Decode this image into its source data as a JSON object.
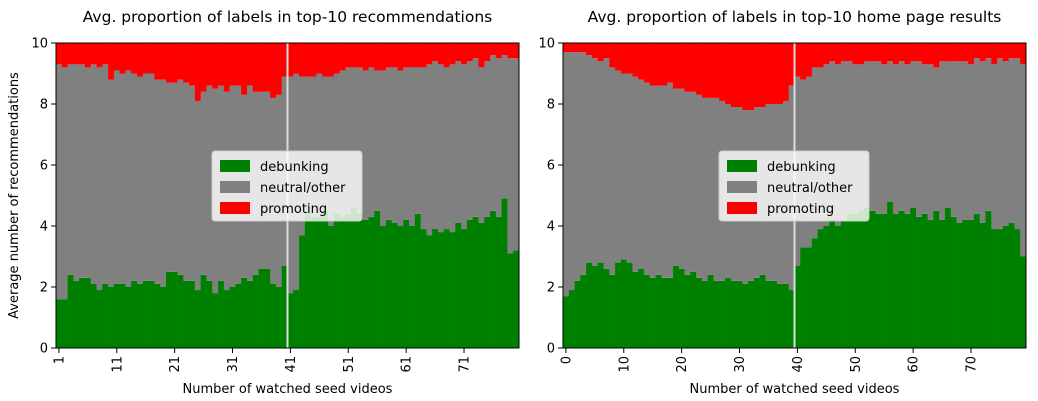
{
  "colors": {
    "debunking": "#008000",
    "neutral": "#808080",
    "promoting": "#ff0000",
    "marker_line": "#dcdcdc"
  },
  "chart_data": [
    {
      "type": "bar",
      "stacked": true,
      "title": "Avg. proportion of labels in top-10 recommendations",
      "xlabel": "Number of watched seed videos",
      "ylabel": "Average number of recommendations",
      "x_start": 1,
      "x_tick_labels": [
        "1",
        "11",
        "21",
        "31",
        "41",
        "51",
        "61",
        "71"
      ],
      "y_tick_labels": [
        "0",
        "2",
        "4",
        "6",
        "8",
        "10"
      ],
      "ylim": [
        0,
        10
      ],
      "grid": false,
      "legend_position": "center",
      "vertical_marker": 41,
      "series": [
        {
          "name": "debunking",
          "values": [
            1.6,
            1.6,
            2.4,
            2.2,
            2.3,
            2.3,
            2.1,
            1.9,
            2.1,
            2.0,
            2.1,
            2.1,
            2.0,
            2.2,
            2.1,
            2.2,
            2.2,
            2.1,
            2.0,
            2.5,
            2.5,
            2.4,
            2.2,
            2.2,
            1.9,
            2.4,
            2.2,
            1.8,
            2.2,
            1.9,
            2.0,
            2.1,
            2.3,
            2.2,
            2.4,
            2.6,
            2.6,
            2.1,
            2.0,
            2.7,
            1.8,
            1.9,
            3.7,
            4.5,
            4.3,
            4.3,
            4.5,
            4.0,
            4.4,
            4.3,
            4.4,
            4.6,
            4.4,
            4.2,
            4.3,
            4.5,
            4.0,
            4.2,
            4.1,
            4.0,
            4.2,
            4.0,
            4.4,
            3.9,
            3.7,
            3.9,
            3.8,
            3.9,
            3.8,
            4.1,
            3.9,
            4.2,
            4.3,
            4.1,
            4.3,
            4.5,
            4.3,
            4.9,
            3.1,
            3.2
          ]
        },
        {
          "name": "neutral/other",
          "values": [
            7.7,
            7.6,
            6.9,
            7.1,
            7.0,
            6.9,
            7.2,
            7.3,
            7.2,
            6.8,
            7.0,
            6.9,
            7.1,
            6.8,
            6.8,
            6.8,
            6.8,
            6.7,
            6.8,
            6.2,
            6.2,
            6.4,
            6.5,
            6.4,
            6.2,
            6.0,
            6.4,
            6.7,
            6.4,
            6.5,
            6.6,
            6.5,
            6.0,
            6.4,
            6.0,
            5.8,
            5.8,
            6.1,
            6.3,
            6.2,
            7.1,
            7.1,
            5.2,
            4.4,
            4.6,
            4.7,
            4.4,
            4.9,
            4.6,
            4.8,
            4.8,
            4.6,
            4.8,
            4.9,
            4.9,
            4.6,
            5.1,
            5.0,
            5.1,
            5.1,
            5.0,
            5.2,
            4.8,
            5.3,
            5.6,
            5.5,
            5.5,
            5.3,
            5.5,
            5.3,
            5.4,
            5.2,
            5.2,
            5.1,
            5.1,
            5.1,
            5.2,
            4.7,
            6.4,
            6.3
          ]
        },
        {
          "name": "promoting",
          "values": [
            0.7,
            0.8,
            0.7,
            0.7,
            0.7,
            0.8,
            0.7,
            0.8,
            0.7,
            1.2,
            0.9,
            1.0,
            0.9,
            1.0,
            1.1,
            1.0,
            1.0,
            1.2,
            1.2,
            1.3,
            1.3,
            1.2,
            1.3,
            1.4,
            1.9,
            1.6,
            1.4,
            1.5,
            1.4,
            1.6,
            1.4,
            1.4,
            1.7,
            1.4,
            1.6,
            1.6,
            1.6,
            1.8,
            1.7,
            1.1,
            1.1,
            1.0,
            1.1,
            1.1,
            1.1,
            1.0,
            1.1,
            1.1,
            1.0,
            0.9,
            0.8,
            0.8,
            0.8,
            0.9,
            0.8,
            0.9,
            0.9,
            0.8,
            0.8,
            0.9,
            0.8,
            0.8,
            0.8,
            0.8,
            0.7,
            0.6,
            0.7,
            0.8,
            0.7,
            0.6,
            0.7,
            0.6,
            0.5,
            0.8,
            0.6,
            0.4,
            0.5,
            0.4,
            0.5,
            0.5
          ]
        }
      ]
    },
    {
      "type": "bar",
      "stacked": true,
      "title": "Avg. proportion of labels in top-10 home page results",
      "xlabel": "Number of watched seed videos",
      "ylabel": "",
      "x_start": 0,
      "x_tick_labels": [
        "0",
        "10",
        "20",
        "30",
        "40",
        "50",
        "60",
        "70"
      ],
      "y_tick_labels": [
        "0",
        "2",
        "4",
        "6",
        "8",
        "10"
      ],
      "ylim": [
        0,
        10
      ],
      "grid": false,
      "legend_position": "center",
      "vertical_marker": 40,
      "series": [
        {
          "name": "debunking",
          "values": [
            1.7,
            1.9,
            2.2,
            2.4,
            2.8,
            2.7,
            2.8,
            2.6,
            2.4,
            2.8,
            2.9,
            2.8,
            2.5,
            2.6,
            2.4,
            2.3,
            2.4,
            2.3,
            2.3,
            2.7,
            2.6,
            2.4,
            2.5,
            2.3,
            2.2,
            2.4,
            2.2,
            2.2,
            2.3,
            2.2,
            2.2,
            2.1,
            2.2,
            2.3,
            2.4,
            2.2,
            2.2,
            2.1,
            2.1,
            1.9,
            2.7,
            3.3,
            3.3,
            3.6,
            3.9,
            4.0,
            4.2,
            4.0,
            4.2,
            4.4,
            4.4,
            4.5,
            4.6,
            4.5,
            4.4,
            4.4,
            4.8,
            4.4,
            4.5,
            4.4,
            4.6,
            4.3,
            4.4,
            4.2,
            4.5,
            4.2,
            4.6,
            4.3,
            4.1,
            4.2,
            4.2,
            4.4,
            4.1,
            4.5,
            3.9,
            3.9,
            4.0,
            4.1,
            3.9,
            3.0
          ]
        },
        {
          "name": "neutral/other",
          "values": [
            8.0,
            7.8,
            7.5,
            7.3,
            6.8,
            6.8,
            6.6,
            6.9,
            6.8,
            6.3,
            6.1,
            6.2,
            6.4,
            6.2,
            6.3,
            6.3,
            6.2,
            6.3,
            6.4,
            5.8,
            5.9,
            6.0,
            5.9,
            6.0,
            6.0,
            5.8,
            6.0,
            5.9,
            5.7,
            5.7,
            5.7,
            5.7,
            5.6,
            5.6,
            5.5,
            5.8,
            5.8,
            5.9,
            6.0,
            6.7,
            6.2,
            5.5,
            5.6,
            5.6,
            5.3,
            5.3,
            5.2,
            5.3,
            5.2,
            5.0,
            4.9,
            4.8,
            4.8,
            4.9,
            5.0,
            4.9,
            4.6,
            4.9,
            4.9,
            4.9,
            4.8,
            5.1,
            4.9,
            5.1,
            4.7,
            5.2,
            4.8,
            5.1,
            5.3,
            5.2,
            5.1,
            5.1,
            5.3,
            5.0,
            5.4,
            5.6,
            5.4,
            5.4,
            5.6,
            6.3
          ]
        },
        {
          "name": "promoting",
          "values": [
            0.3,
            0.3,
            0.3,
            0.3,
            0.4,
            0.5,
            0.6,
            0.5,
            0.8,
            0.9,
            1.0,
            1.0,
            1.1,
            1.2,
            1.3,
            1.4,
            1.4,
            1.4,
            1.3,
            1.5,
            1.5,
            1.6,
            1.6,
            1.7,
            1.8,
            1.8,
            1.8,
            1.9,
            2.0,
            2.1,
            2.1,
            2.2,
            2.2,
            2.1,
            2.1,
            2.0,
            2.0,
            2.0,
            1.9,
            1.4,
            1.1,
            1.2,
            1.1,
            0.8,
            0.8,
            0.7,
            0.6,
            0.7,
            0.6,
            0.6,
            0.7,
            0.7,
            0.6,
            0.6,
            0.6,
            0.7,
            0.6,
            0.7,
            0.6,
            0.7,
            0.6,
            0.6,
            0.7,
            0.7,
            0.8,
            0.6,
            0.6,
            0.6,
            0.6,
            0.6,
            0.7,
            0.5,
            0.6,
            0.5,
            0.7,
            0.5,
            0.6,
            0.5,
            0.5,
            0.7
          ]
        }
      ]
    }
  ]
}
